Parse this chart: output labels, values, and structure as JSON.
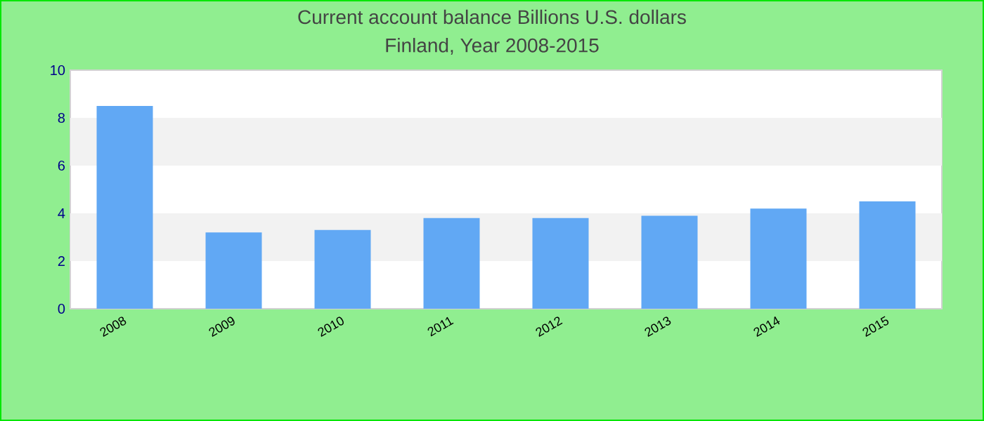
{
  "chart_data": {
    "type": "bar",
    "title": "Current account balance Billions U.S. dollars",
    "subtitle": "Finland, Year 2008-2015",
    "categories": [
      "2008",
      "2009",
      "2010",
      "2011",
      "2012",
      "2013",
      "2014",
      "2015"
    ],
    "values": [
      8.5,
      3.2,
      3.3,
      3.8,
      3.8,
      3.9,
      4.2,
      4.5
    ],
    "color": "#61a8f4",
    "ylim": [
      0,
      10
    ],
    "yticks": [
      0,
      2,
      4,
      6,
      8,
      10
    ],
    "bands": [
      {
        "axis": "y",
        "from": 2,
        "to": 4,
        "color": "#f2f2f2"
      },
      {
        "axis": "y",
        "from": 6,
        "to": 8,
        "color": "#f2f2f2"
      }
    ]
  }
}
